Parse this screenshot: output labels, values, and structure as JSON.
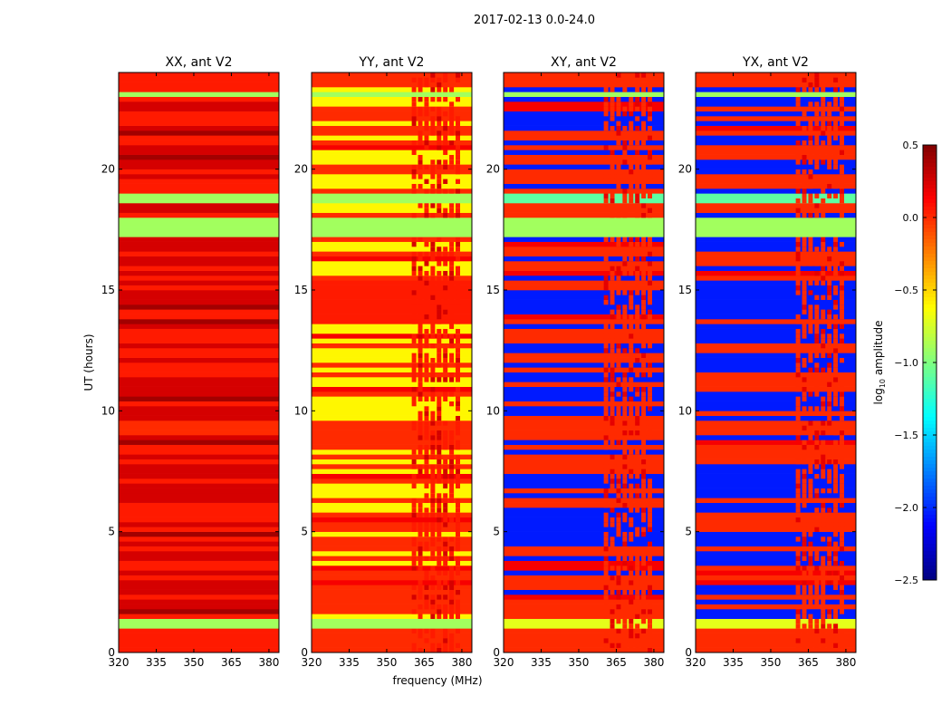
{
  "figure": {
    "suptitle": "2017-02-13 0.0-24.0",
    "xlabel": "frequency (MHz)",
    "ylabel": "UT (hours)"
  },
  "colorbar": {
    "label": "log10 amplitude",
    "label_main": "log",
    "label_sub": "10",
    "label_rest": " amplitude",
    "range": [
      -2.5,
      0.5
    ],
    "ticks": [
      0.5,
      0.0,
      -0.5,
      -1.0,
      -1.5,
      -2.0,
      -2.5
    ],
    "tick_labels": [
      "0.5",
      "0.0",
      "−0.5",
      "−1.0",
      "−1.5",
      "−2.0",
      "−2.5"
    ],
    "colormap": "jet"
  },
  "chart_data": [
    {
      "type": "heatmap",
      "title": "XX, ant V2",
      "xlim": [
        320,
        384
      ],
      "ylim": [
        0,
        24
      ],
      "xticks": [
        320,
        335,
        350,
        365,
        380
      ],
      "yticks": [
        0,
        5,
        10,
        15,
        20
      ],
      "base_values": [
        0.05,
        0.25
      ],
      "bands": [
        {
          "t0": 0,
          "t1": 1.1,
          "value": 0.05
        },
        {
          "t0": 1.1,
          "t1": 1.4,
          "value": -0.9
        },
        {
          "t0": 9.0,
          "t1": 9.6,
          "value": 0.0
        },
        {
          "t0": 17.1,
          "t1": 17.9,
          "value": -0.9
        },
        {
          "t0": 18.55,
          "t1": 18.9,
          "value": -0.9
        },
        {
          "t0": 22.9,
          "t1": 23.2,
          "value": -0.9
        },
        {
          "t0": 23.2,
          "t1": 24,
          "value": 0.05
        }
      ],
      "rfi": null
    },
    {
      "type": "heatmap",
      "title": "YY, ant V2",
      "xlim": [
        320,
        384
      ],
      "ylim": [
        0,
        24
      ],
      "xticks": [
        320,
        335,
        350,
        365,
        380
      ],
      "yticks": [
        0,
        5,
        10,
        15,
        20
      ],
      "base_values": [
        -0.6,
        0.0
      ],
      "bands": [
        {
          "t0": 0,
          "t1": 1.0,
          "value": 0.0
        },
        {
          "t0": 1.0,
          "t1": 1.4,
          "value": -0.9
        },
        {
          "t0": 3.0,
          "t1": 3.3,
          "value": 0.0
        },
        {
          "t0": 9.0,
          "t1": 9.6,
          "value": 0.0
        },
        {
          "t0": 13.5,
          "t1": 15.3,
          "value": 0.05
        },
        {
          "t0": 17.1,
          "t1": 17.9,
          "value": -0.9
        },
        {
          "t0": 18.55,
          "t1": 18.9,
          "value": -0.9
        },
        {
          "t0": 22.9,
          "t1": 23.2,
          "value": -0.9
        },
        {
          "t0": 23.3,
          "t1": 24,
          "value": 0.0
        }
      ],
      "rfi": {
        "f0": 360,
        "f1": 380,
        "value": 0.05
      }
    },
    {
      "type": "heatmap",
      "title": "XY, ant V2",
      "xlim": [
        320,
        384
      ],
      "ylim": [
        0,
        24
      ],
      "xticks": [
        320,
        335,
        350,
        365,
        380
      ],
      "yticks": [
        0,
        5,
        10,
        15,
        20
      ],
      "base_values": [
        -2.05,
        0.0
      ],
      "bands": [
        {
          "t0": 0,
          "t1": 1.0,
          "value": 0.0
        },
        {
          "t0": 1.0,
          "t1": 1.4,
          "value": -0.7
        },
        {
          "t0": 3.0,
          "t1": 3.3,
          "value": 0.0
        },
        {
          "t0": 9.0,
          "t1": 9.6,
          "value": 0.0
        },
        {
          "t0": 17.1,
          "t1": 17.9,
          "value": -0.9
        },
        {
          "t0": 18.55,
          "t1": 18.9,
          "value": -1.1
        },
        {
          "t0": 22.9,
          "t1": 23.2,
          "value": -0.9
        },
        {
          "t0": 23.3,
          "t1": 24,
          "value": 0.0
        }
      ],
      "rfi": {
        "f0": 360,
        "f1": 380,
        "value": 0.0
      }
    },
    {
      "type": "heatmap",
      "title": "YX, ant V2",
      "xlim": [
        320,
        384
      ],
      "ylim": [
        0,
        24
      ],
      "xticks": [
        320,
        335,
        350,
        365,
        380
      ],
      "yticks": [
        0,
        5,
        10,
        15,
        20
      ],
      "base_values": [
        -2.05,
        0.0
      ],
      "bands": [
        {
          "t0": 0,
          "t1": 1.0,
          "value": 0.0
        },
        {
          "t0": 1.0,
          "t1": 1.4,
          "value": -0.7
        },
        {
          "t0": 3.0,
          "t1": 3.3,
          "value": 0.0
        },
        {
          "t0": 9.0,
          "t1": 9.6,
          "value": 0.0
        },
        {
          "t0": 17.1,
          "t1": 17.9,
          "value": -0.9
        },
        {
          "t0": 18.55,
          "t1": 18.9,
          "value": -1.1
        },
        {
          "t0": 22.9,
          "t1": 23.2,
          "value": -0.9
        },
        {
          "t0": 23.3,
          "t1": 24,
          "value": 0.0
        }
      ],
      "rfi": {
        "f0": 360,
        "f1": 380,
        "value": 0.0
      }
    }
  ]
}
